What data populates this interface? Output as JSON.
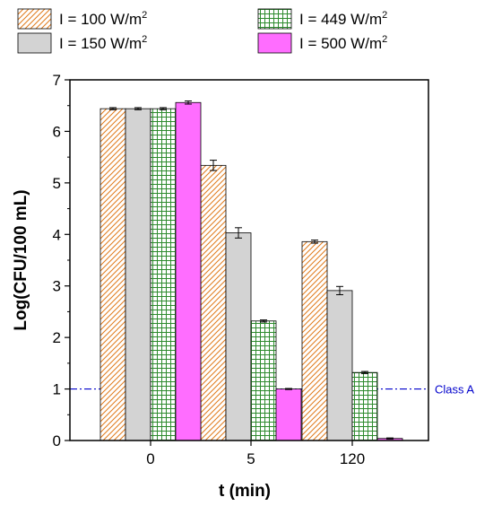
{
  "chart_data": {
    "type": "bar",
    "xlabel": "t (min)",
    "ylabel": "Log(CFU/100 mL)",
    "ylim": [
      0,
      7
    ],
    "yticks": [
      0,
      1,
      2,
      3,
      4,
      5,
      6,
      7
    ],
    "categories": [
      "0",
      "5",
      "120"
    ],
    "legend_position": "top",
    "series": [
      {
        "name": "I = 100 W/m",
        "unit_sup": "2",
        "pattern": "diagonal-hatch",
        "color": "#e07a1a",
        "fill": "#ffffff",
        "values": [
          6.44,
          5.34,
          3.86
        ],
        "errors": [
          0.02,
          0.1,
          0.03
        ]
      },
      {
        "name": "I = 150 W/m",
        "unit_sup": "2",
        "pattern": "solid",
        "color": "#d3d3d3",
        "fill": "#d3d3d3",
        "values": [
          6.44,
          4.03,
          2.91
        ],
        "errors": [
          0.02,
          0.1,
          0.08
        ]
      },
      {
        "name": "I = 449 W/m",
        "unit_sup": "2",
        "pattern": "grid",
        "color": "#2e8b2e",
        "fill": "#ffffff",
        "values": [
          6.44,
          2.32,
          1.32
        ],
        "errors": [
          0.02,
          0.02,
          0.02
        ]
      },
      {
        "name": "I = 500 W/m",
        "unit_sup": "2",
        "pattern": "solid",
        "color": "#ff6dff",
        "fill": "#ff6dff",
        "values": [
          6.56,
          1.0,
          0.04
        ],
        "errors": [
          0.03,
          0.01,
          0.01
        ]
      }
    ],
    "reference_line": {
      "label": "Class A",
      "value": 1,
      "color": "#0000cc",
      "style": "dash-dot"
    }
  }
}
